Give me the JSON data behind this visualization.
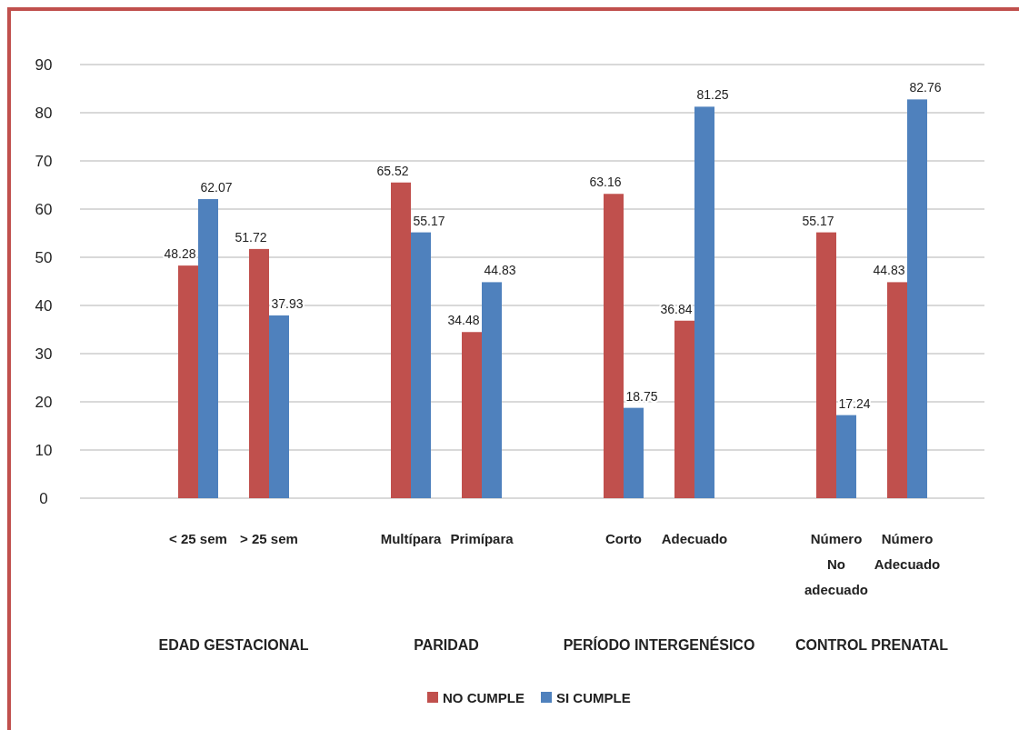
{
  "chart_data": {
    "type": "bar",
    "categories": [
      "< 25 sem",
      "> 25 sem",
      "Multípara",
      "Primípara",
      "Corto",
      "Adecuado",
      "Número No adecuado",
      "Número Adecuado"
    ],
    "series": [
      {
        "name": "NO CUMPLE",
        "color": "#c0504d",
        "values": [
          48.28,
          51.72,
          65.52,
          34.48,
          63.16,
          36.84,
          55.17,
          44.83
        ]
      },
      {
        "name": "SI CUMPLE",
        "color": "#4f81bd",
        "values": [
          62.07,
          37.93,
          55.17,
          44.83,
          18.75,
          81.25,
          17.24,
          82.76
        ]
      }
    ],
    "annotations": [
      "EDAD GESTACIONAL",
      "PARIDAD",
      "PERÍODO INTERGENÉSICO",
      "CONTROL PRENATAL"
    ],
    "ylim": [
      0,
      90
    ],
    "yticks": [
      0,
      10,
      20,
      30,
      40,
      50,
      60,
      70,
      80,
      90
    ],
    "grid": "y",
    "legend": "bottom",
    "data_labels": true
  }
}
